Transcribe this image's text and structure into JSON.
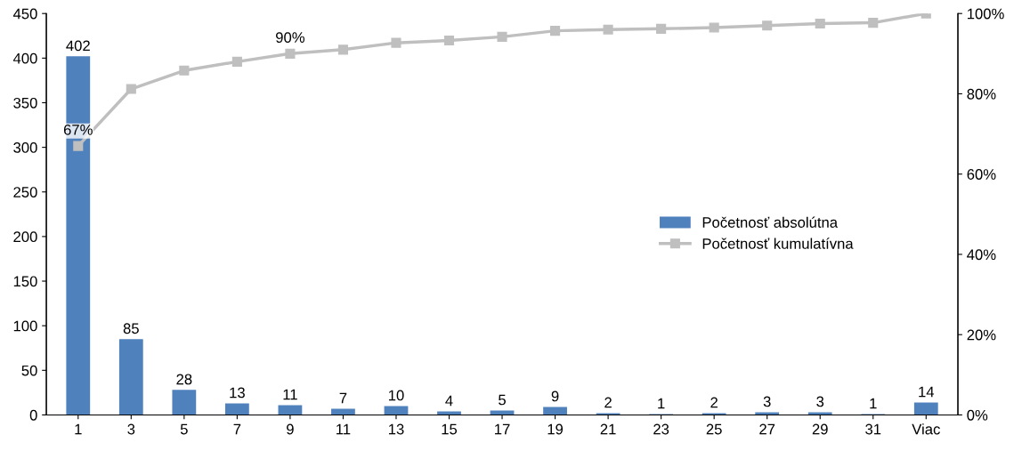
{
  "chart_data": {
    "type": "bar",
    "categories": [
      "1",
      "3",
      "5",
      "7",
      "9",
      "11",
      "13",
      "15",
      "17",
      "19",
      "21",
      "23",
      "25",
      "27",
      "29",
      "31",
      "Viac"
    ],
    "series": [
      {
        "name": "Početnosť absolútna",
        "color": "#4f81bd",
        "values": [
          402,
          85,
          28,
          13,
          11,
          7,
          10,
          4,
          5,
          9,
          2,
          1,
          2,
          3,
          3,
          1,
          14
        ],
        "value_labels": [
          "402",
          "85",
          "28",
          "13",
          "11",
          "7",
          "10",
          "4",
          "5",
          "9",
          "2",
          "1",
          "2",
          "3",
          "3",
          "1",
          "14"
        ]
      },
      {
        "name": "Početnosť kumulatívna",
        "type": "line",
        "axis": "y2",
        "color": "#bfbfbf",
        "marker": "square",
        "values": [
          67,
          81.2,
          85.8,
          88,
          90,
          91,
          92.7,
          93.3,
          94.2,
          95.7,
          96,
          96.2,
          96.5,
          97,
          97.5,
          97.7,
          100
        ],
        "value_labels": [
          "67%",
          null,
          null,
          null,
          "90%",
          null,
          null,
          null,
          null,
          null,
          null,
          null,
          null,
          null,
          null,
          null,
          null
        ]
      }
    ],
    "ylim": [
      0,
      450
    ],
    "yticks": [
      0,
      50,
      100,
      150,
      200,
      250,
      300,
      350,
      400,
      450
    ],
    "y2lim": [
      0,
      100
    ],
    "y2ticks": [
      {
        "value": 0,
        "label": "0%"
      },
      {
        "value": 20,
        "label": "20%"
      },
      {
        "value": 40,
        "label": "40%"
      },
      {
        "value": 60,
        "label": "60%"
      },
      {
        "value": 80,
        "label": "80%"
      },
      {
        "value": 100,
        "label": "100%"
      }
    ],
    "legend": "right",
    "grid": false
  }
}
